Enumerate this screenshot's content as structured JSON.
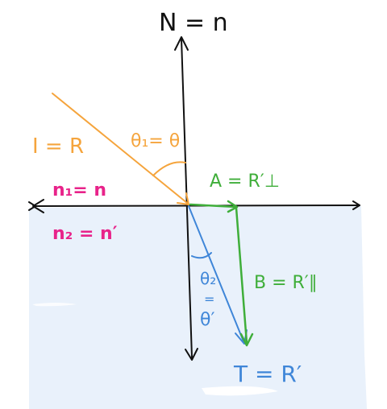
{
  "labels": {
    "normal": "N = n",
    "incident": "I = R",
    "incident_angle": "θ₁= θ",
    "medium1": "n₁= n",
    "medium2": "n₂ = n′",
    "component_a": "A = R′⊥",
    "component_b": "B = R′∥",
    "refracted_angle_top": "θ₂",
    "refracted_angle_eq": "=",
    "refracted_angle_bottom": "θ′",
    "transmitted": "T = R′"
  },
  "colors": {
    "axes": "#111111",
    "incident": "#f5a43c",
    "medium_label": "#e8238a",
    "components": "#3fae3a",
    "refracted": "#3f86d8",
    "medium2_fill": "#e9f1fb"
  }
}
